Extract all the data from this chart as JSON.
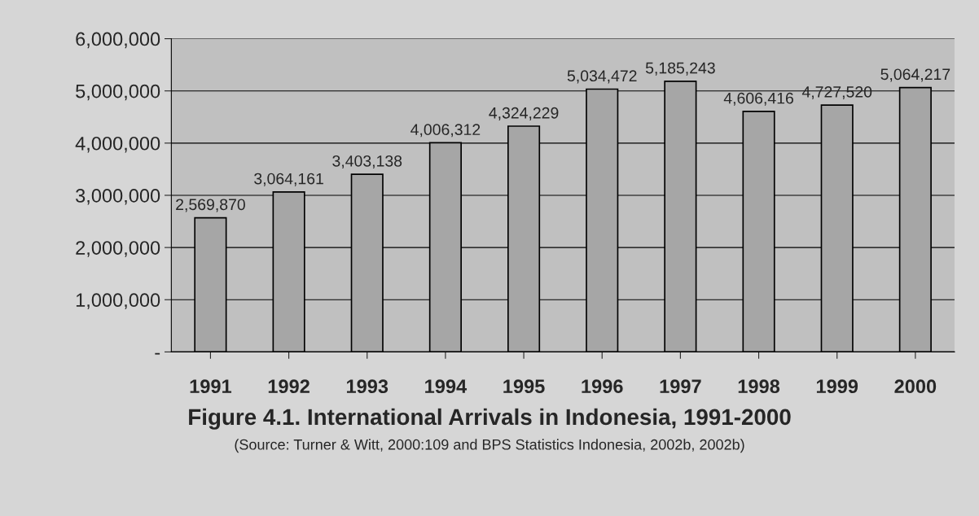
{
  "chart_data": {
    "type": "bar",
    "title": "Figure 4.1. International Arrivals in Indonesia, 1991-2000",
    "categories": [
      "1991",
      "1992",
      "1993",
      "1994",
      "1995",
      "1996",
      "1997",
      "1998",
      "1999",
      "2000"
    ],
    "values": [
      2569870,
      3064161,
      3403138,
      4006312,
      4324229,
      5034472,
      5185243,
      4606416,
      4727520,
      5064217
    ],
    "value_labels": [
      "2,569,870",
      "3,064,161",
      "3,403,138",
      "4,006,312",
      "4,324,229",
      "5,034,472",
      "5,185,243",
      "4,606,416",
      "4,727,520",
      "5,064,217"
    ],
    "color": "#a6a6a6",
    "ylim": [
      0,
      6000000
    ],
    "yticks": [
      {
        "value": 0,
        "label": "-"
      },
      {
        "value": 1000000,
        "label": "1,000,000"
      },
      {
        "value": 2000000,
        "label": "2,000,000"
      },
      {
        "value": 3000000,
        "label": "3,000,000"
      },
      {
        "value": 4000000,
        "label": "4,000,000"
      },
      {
        "value": 5000000,
        "label": "5,000,000"
      },
      {
        "value": 6000000,
        "label": "6,000,000"
      }
    ],
    "grid": "y",
    "annotations": [
      "(Source: Turner & Witt, 2000:109 and BPS Statistics Indonesia, 2002b, 2002b)"
    ]
  }
}
